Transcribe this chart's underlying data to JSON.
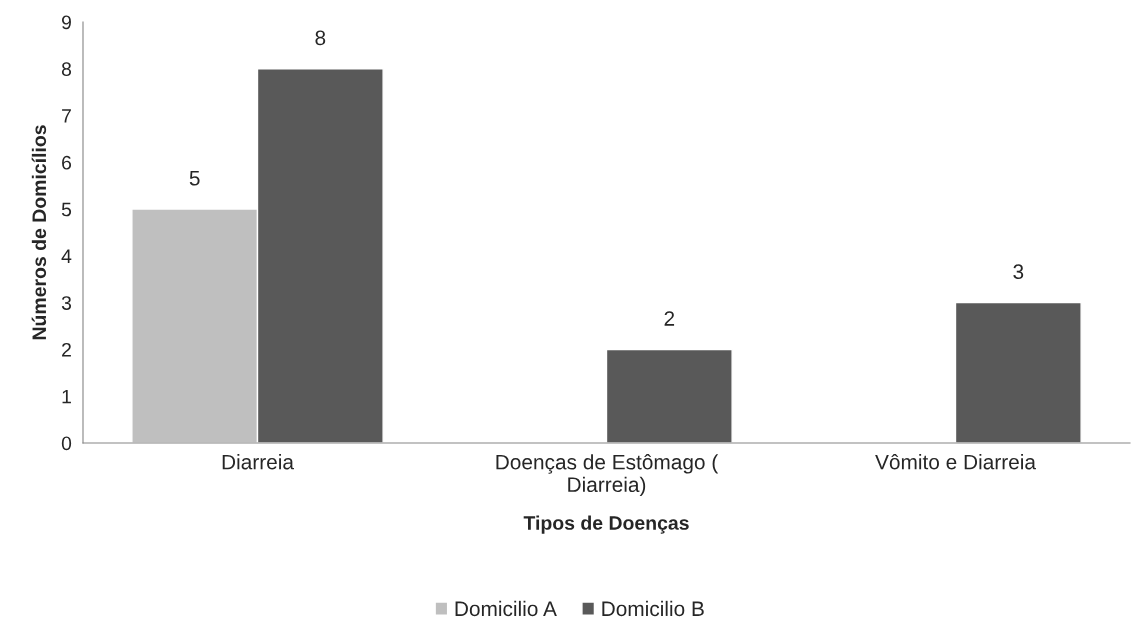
{
  "chart_data": {
    "type": "bar",
    "xlabel": "Tipos de Doenças",
    "ylabel": "Números de Domicílios",
    "categories": [
      "Diarreia",
      "Doenças de Estômago ( Diarreia)",
      "Vômito e Diarreia"
    ],
    "series": [
      {
        "name": "Domicilio A",
        "color": "#bfbfbf",
        "values": [
          5,
          null,
          null
        ]
      },
      {
        "name": "Domicilio B",
        "color": "#595959",
        "values": [
          8,
          2,
          3
        ]
      }
    ],
    "ylim": [
      0,
      9
    ],
    "yticks": [
      0,
      1,
      2,
      3,
      4,
      5,
      6,
      7,
      8,
      9
    ],
    "grid": false,
    "data_labels": true,
    "legend": "bottom"
  }
}
